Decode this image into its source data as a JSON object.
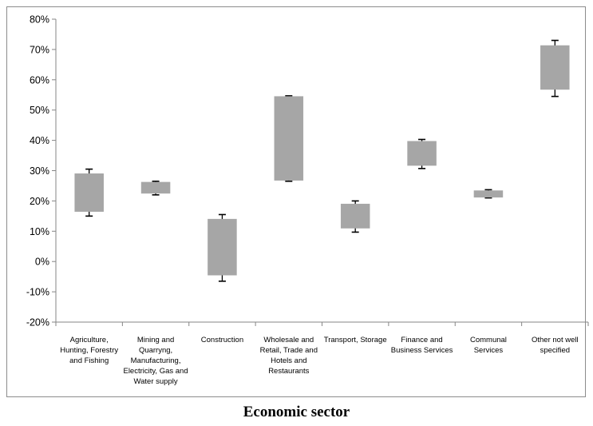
{
  "chart_data": {
    "type": "box",
    "title": "",
    "xlabel": "Economic sector",
    "ylabel": "",
    "ylim": [
      -0.2,
      0.8
    ],
    "yticks": [
      -0.2,
      -0.1,
      0,
      0.1,
      0.2,
      0.3,
      0.4,
      0.5,
      0.6,
      0.7,
      0.8
    ],
    "ytick_labels": [
      "-20%",
      "-10%",
      "0%",
      "10%",
      "20%",
      "30%",
      "40%",
      "50%",
      "60%",
      "70%",
      "80%"
    ],
    "grid": false,
    "box_color": "#a6a6a6",
    "categories": [
      [
        "Agriculture,",
        "Hunting, Forestry",
        "and Fishing"
      ],
      [
        "Mining and",
        "Quarryng,",
        "Manufacturing,",
        "Electricity, Gas and",
        "Water supply"
      ],
      [
        "Construction"
      ],
      [
        "Wholesale and",
        "Retail, Trade and",
        "Hotels and",
        "Restaurants"
      ],
      [
        "Transport, Storage"
      ],
      [
        "Finance and",
        "Business Services"
      ],
      [
        "Communal",
        "Services"
      ],
      [
        "Other not well",
        "specified"
      ]
    ],
    "boxes": [
      {
        "low": 0.15,
        "q1": 0.165,
        "q3": 0.29,
        "high": 0.305
      },
      {
        "low": 0.22,
        "q1": 0.225,
        "q3": 0.262,
        "high": 0.265
      },
      {
        "low": -0.065,
        "q1": -0.045,
        "q3": 0.14,
        "high": 0.155
      },
      {
        "low": 0.265,
        "q1": 0.268,
        "q3": 0.545,
        "high": 0.547
      },
      {
        "low": 0.097,
        "q1": 0.11,
        "q3": 0.19,
        "high": 0.2
      },
      {
        "low": 0.307,
        "q1": 0.317,
        "q3": 0.397,
        "high": 0.403
      },
      {
        "low": 0.21,
        "q1": 0.212,
        "q3": 0.234,
        "high": 0.237
      },
      {
        "low": 0.545,
        "q1": 0.568,
        "q3": 0.713,
        "high": 0.73
      }
    ]
  }
}
